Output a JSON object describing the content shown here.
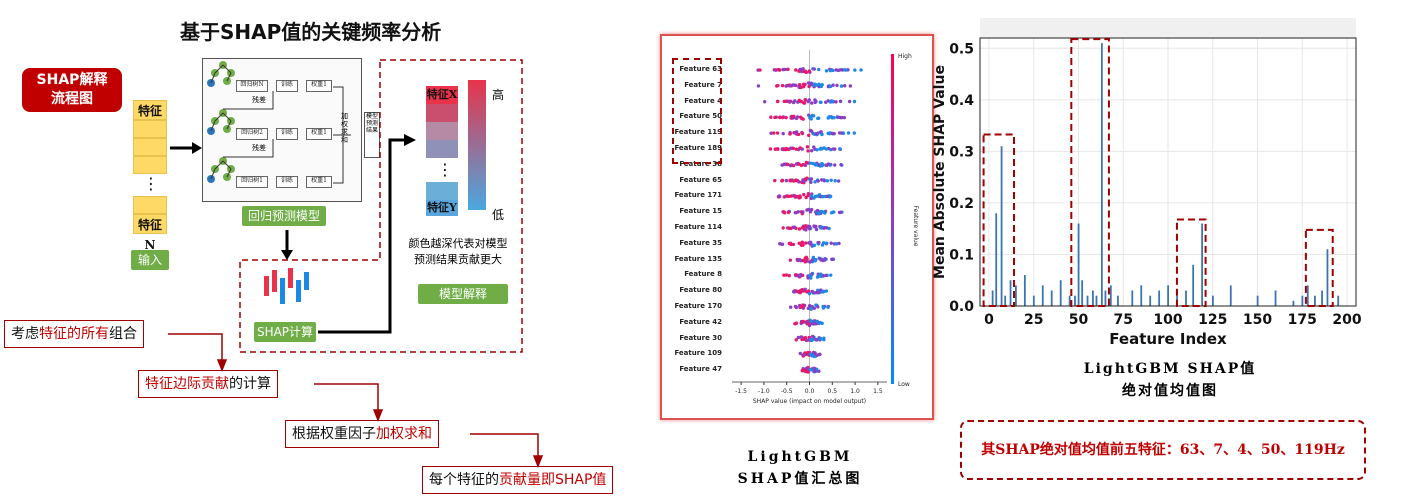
{
  "title": "基于SHAP值的关键频率分析",
  "flow": {
    "badge_line1": "SHAP解释",
    "badge_line2": "流程图",
    "feature_top": "特征1",
    "feature_bottom": "特征N",
    "dots": "⋮",
    "input_label": "输入",
    "regression_label": "回归预测模型",
    "shap_calc_label": "SHAP计算",
    "model_explain_label": "模型解释",
    "tree_rows": [
      {
        "tree": "回归树N",
        "train": "训练",
        "weight": "权重1",
        "resid": "残差"
      },
      {
        "tree": "回归树2",
        "train": "训练",
        "weight": "权重1",
        "resid": "残差"
      },
      {
        "tree": "回归树1",
        "train": "训练",
        "weight": "权重1",
        "resid": ""
      }
    ],
    "agg_label": "加权求和",
    "pred_label": "模型预测结果",
    "feat_x": "特征X",
    "feat_y": "特征Y",
    "high": "高",
    "low": "低",
    "color_note_1": "颜色越深代表对模型",
    "color_note_2": "预测结果贡献更大",
    "steps": [
      {
        "pre": "考虑",
        "hl": "特征的所有",
        "post": "组合"
      },
      {
        "pre": "",
        "hl": "特征边际贡献",
        "post": "的计算"
      },
      {
        "pre": "根据权重因子",
        "hl": "加权求和",
        "post": ""
      },
      {
        "pre": "每个特征的",
        "hl": "贡献量即SHAP值",
        "post": ""
      }
    ]
  },
  "summary_plot": {
    "features": [
      "Feature 63",
      "Feature 7",
      "Feature 4",
      "Feature 50",
      "Feature 119",
      "Feature 189",
      "Feature 38",
      "Feature 65",
      "Feature 171",
      "Feature 15",
      "Feature 114",
      "Feature 35",
      "Feature 135",
      "Feature 8",
      "Feature 80",
      "Feature 170",
      "Feature 42",
      "Feature 30",
      "Feature 109",
      "Feature 47"
    ],
    "x_ticks": [
      "-1.5",
      "-1.0",
      "-0.5",
      "0.0",
      "0.5",
      "1.0",
      "1.5"
    ],
    "x_label": "SHAP value (impact on model output)",
    "cbar_high": "High",
    "cbar_low": "Low",
    "cbar_label": "Feature value",
    "caption_1": "LightGBM",
    "caption_2": "SHAP值汇总图"
  },
  "chart_data": {
    "type": "bar",
    "xlabel": "Feature Index",
    "ylabel": "Mean Absolute SHAP Value",
    "xlim": [
      -5,
      205
    ],
    "ylim": [
      0,
      0.52
    ],
    "x_ticks": [
      0,
      25,
      50,
      75,
      100,
      125,
      150,
      175,
      200
    ],
    "y_ticks": [
      0.0,
      0.1,
      0.2,
      0.3,
      0.4,
      0.5
    ],
    "x": [
      2,
      4,
      7,
      9,
      12,
      15,
      20,
      25,
      30,
      35,
      40,
      45,
      48,
      50,
      52,
      55,
      58,
      60,
      63,
      65,
      68,
      72,
      80,
      85,
      90,
      95,
      100,
      105,
      110,
      114,
      119,
      125,
      135,
      150,
      160,
      170,
      175,
      178,
      182,
      186,
      189,
      195
    ],
    "values": [
      0.03,
      0.18,
      0.31,
      0.02,
      0.05,
      0.04,
      0.06,
      0.02,
      0.04,
      0.03,
      0.05,
      0.02,
      0.02,
      0.16,
      0.05,
      0.02,
      0.03,
      0.02,
      0.51,
      0.03,
      0.04,
      0.02,
      0.03,
      0.04,
      0.02,
      0.03,
      0.04,
      0.02,
      0.03,
      0.08,
      0.16,
      0.02,
      0.04,
      0.02,
      0.03,
      0.01,
      0.02,
      0.04,
      0.02,
      0.03,
      0.11,
      0.02
    ],
    "caption_1": "LightGBM  SHAP值",
    "caption_2": "绝对值均值图"
  },
  "conclusion": "其SHAP绝对值均值前五特征：63、7、4、50、119Hz",
  "colors": {
    "accent": "#c00000",
    "feature_box": "#ffd966",
    "green": "#70ad47",
    "bar": "#3b75af"
  }
}
